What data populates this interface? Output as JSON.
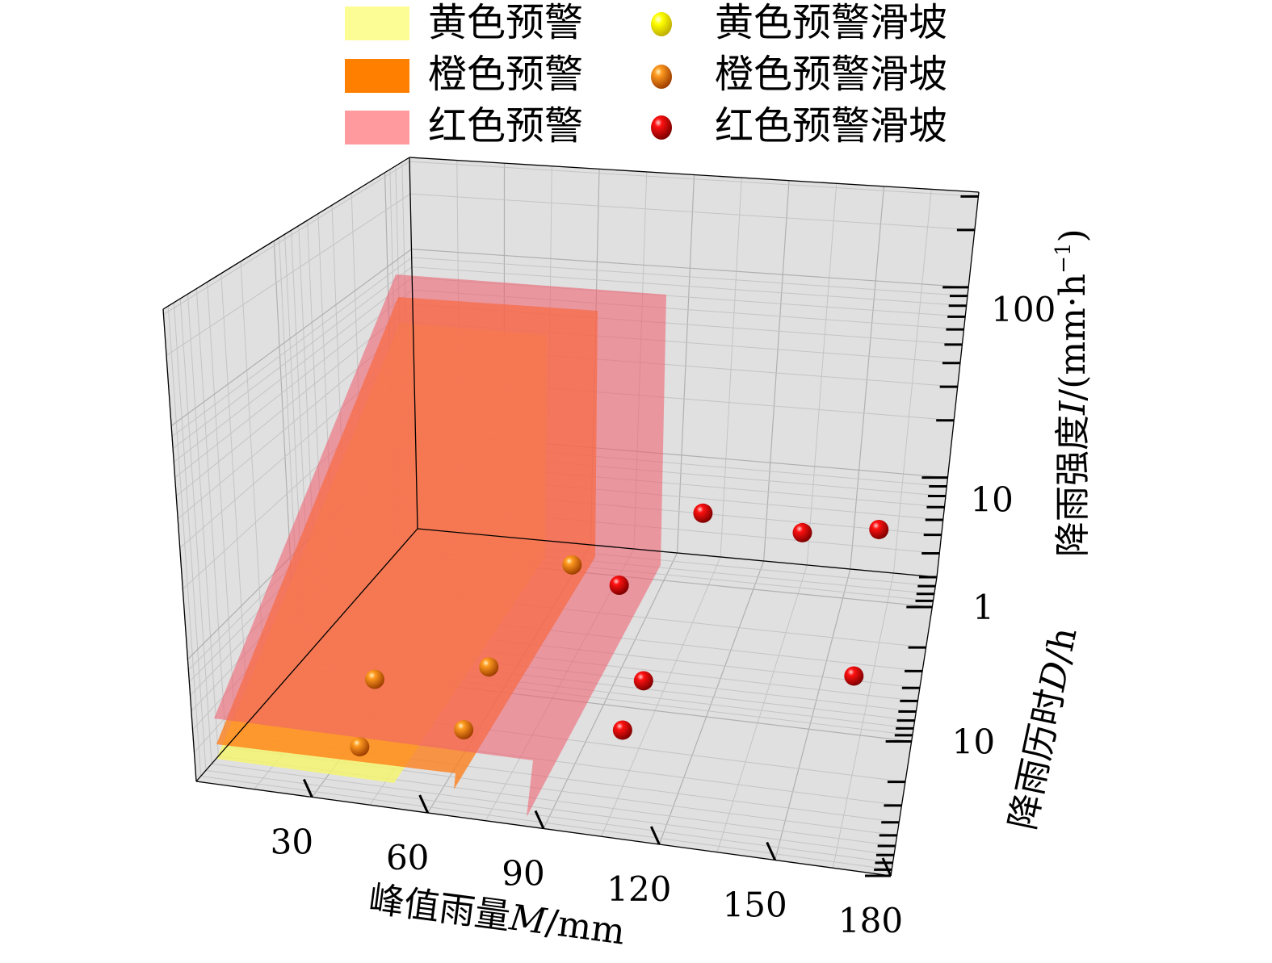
{
  "chart_data": {
    "type": "scatter3d",
    "legend": {
      "placement": "top",
      "zones": [
        {
          "label": "黄色预警",
          "color": "#fdfd96"
        },
        {
          "label": "橙色预警",
          "color": "#ff8000"
        },
        {
          "label": "红色预警",
          "color": "#ff9a9e"
        }
      ],
      "markers": [
        {
          "label": "黄色预警滑坡",
          "color": "#ffff00"
        },
        {
          "label": "橙色预警滑坡",
          "color": "#ff8000"
        },
        {
          "label": "红色预警滑坡",
          "color": "#ff0000"
        }
      ]
    },
    "x_axis": {
      "label_prefix": "峰值雨量",
      "label_var": "M",
      "label_suffix": "/mm",
      "range": [
        0,
        180
      ],
      "ticks": [
        30,
        60,
        90,
        120,
        150,
        180
      ],
      "scale": "linear"
    },
    "y_axis": {
      "label_prefix": "降雨历时",
      "label_var": "D",
      "label_suffix": "/h",
      "range": [
        0.6,
        100
      ],
      "ticks": [
        1,
        10
      ],
      "scale": "log"
    },
    "z_axis": {
      "label_prefix": "降雨强度",
      "label_var": "I",
      "label_suffix": "/(mm·h",
      "label_exp": "−1",
      "label_close": ")",
      "range": [
        3,
        316
      ],
      "ticks": [
        10,
        100
      ],
      "scale": "log"
    },
    "grid": true,
    "series": [
      {
        "name": "黄色预警滑坡",
        "color": "#ffff00",
        "points": []
      },
      {
        "name": "橙色预警滑坡",
        "color": "#ff8000",
        "points": [
          {
            "M": 70,
            "D": 3,
            "I": 6.5
          },
          {
            "M": 63,
            "D": 20,
            "I": 5.8
          },
          {
            "M": 31,
            "D": 20,
            "I": 4.4
          },
          {
            "M": 64,
            "D": 50,
            "I": 4.9
          },
          {
            "M": 36,
            "D": 50,
            "I": 3.6
          }
        ]
      },
      {
        "name": "红色预警滑坡",
        "color": "#ff0000",
        "points": [
          {
            "M": 102,
            "D": 1,
            "I": 7
          },
          {
            "M": 135,
            "D": 1,
            "I": 6.2
          },
          {
            "M": 160,
            "D": 1,
            "I": 7
          },
          {
            "M": 94,
            "D": 10,
            "I": 11
          },
          {
            "M": 106,
            "D": 20,
            "I": 6.1
          },
          {
            "M": 164,
            "D": 20,
            "I": 8.3
          },
          {
            "M": 103,
            "D": 30,
            "I": 4.5
          }
        ]
      }
    ]
  }
}
